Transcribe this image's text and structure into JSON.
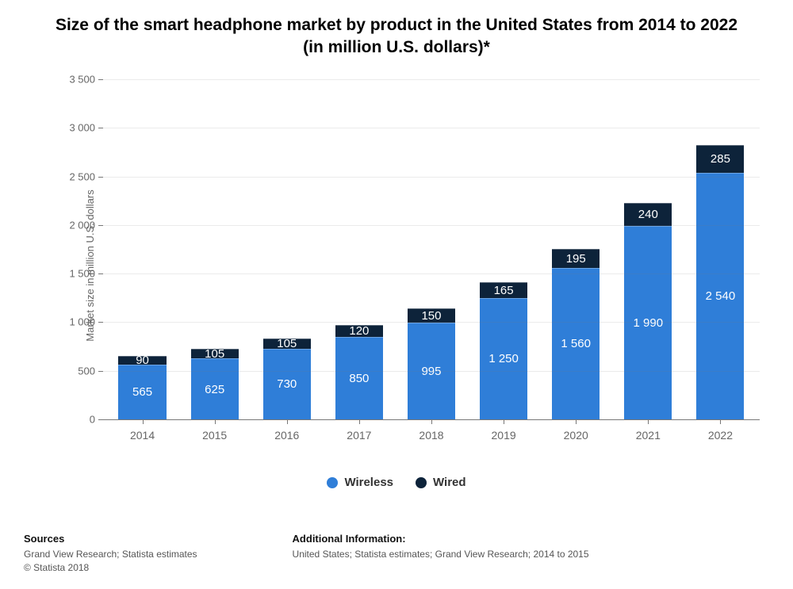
{
  "title": "Size of the smart headphone market by product in the United States from 2014 to 2022 (in million U.S. dollars)*",
  "title_fontsize": 21,
  "chart": {
    "type": "stacked-bar",
    "categories": [
      "2014",
      "2015",
      "2016",
      "2017",
      "2018",
      "2019",
      "2020",
      "2021",
      "2022"
    ],
    "series": [
      {
        "name": "Wireless",
        "color": "#2f7ed8",
        "values": [
          565,
          625,
          730,
          850,
          995,
          1250,
          1560,
          1990,
          2540
        ]
      },
      {
        "name": "Wired",
        "color": "#0d233a",
        "values": [
          90,
          105,
          105,
          120,
          150,
          165,
          195,
          240,
          285
        ]
      }
    ],
    "y_axis_label": "Market size in million U.S. dollars",
    "ylim": [
      0,
      3500
    ],
    "ytick_step": 500,
    "background_color": "#ffffff",
    "axis_color": "#777777",
    "label_fontsize": 13,
    "value_label_fontsize": 15,
    "x_label_fontsize": 14,
    "bar_width_ratio": 0.66,
    "number_format_space_thousands": true
  },
  "legend": {
    "position": "bottom-center"
  },
  "footer": {
    "sources_heading": "Sources",
    "sources_text": "Grand View Research; Statista estimates",
    "copyright": "© Statista 2018",
    "additional_heading": "Additional Information:",
    "additional_text": "United States; Statista estimates; Grand View Research; 2014 to 2015"
  }
}
